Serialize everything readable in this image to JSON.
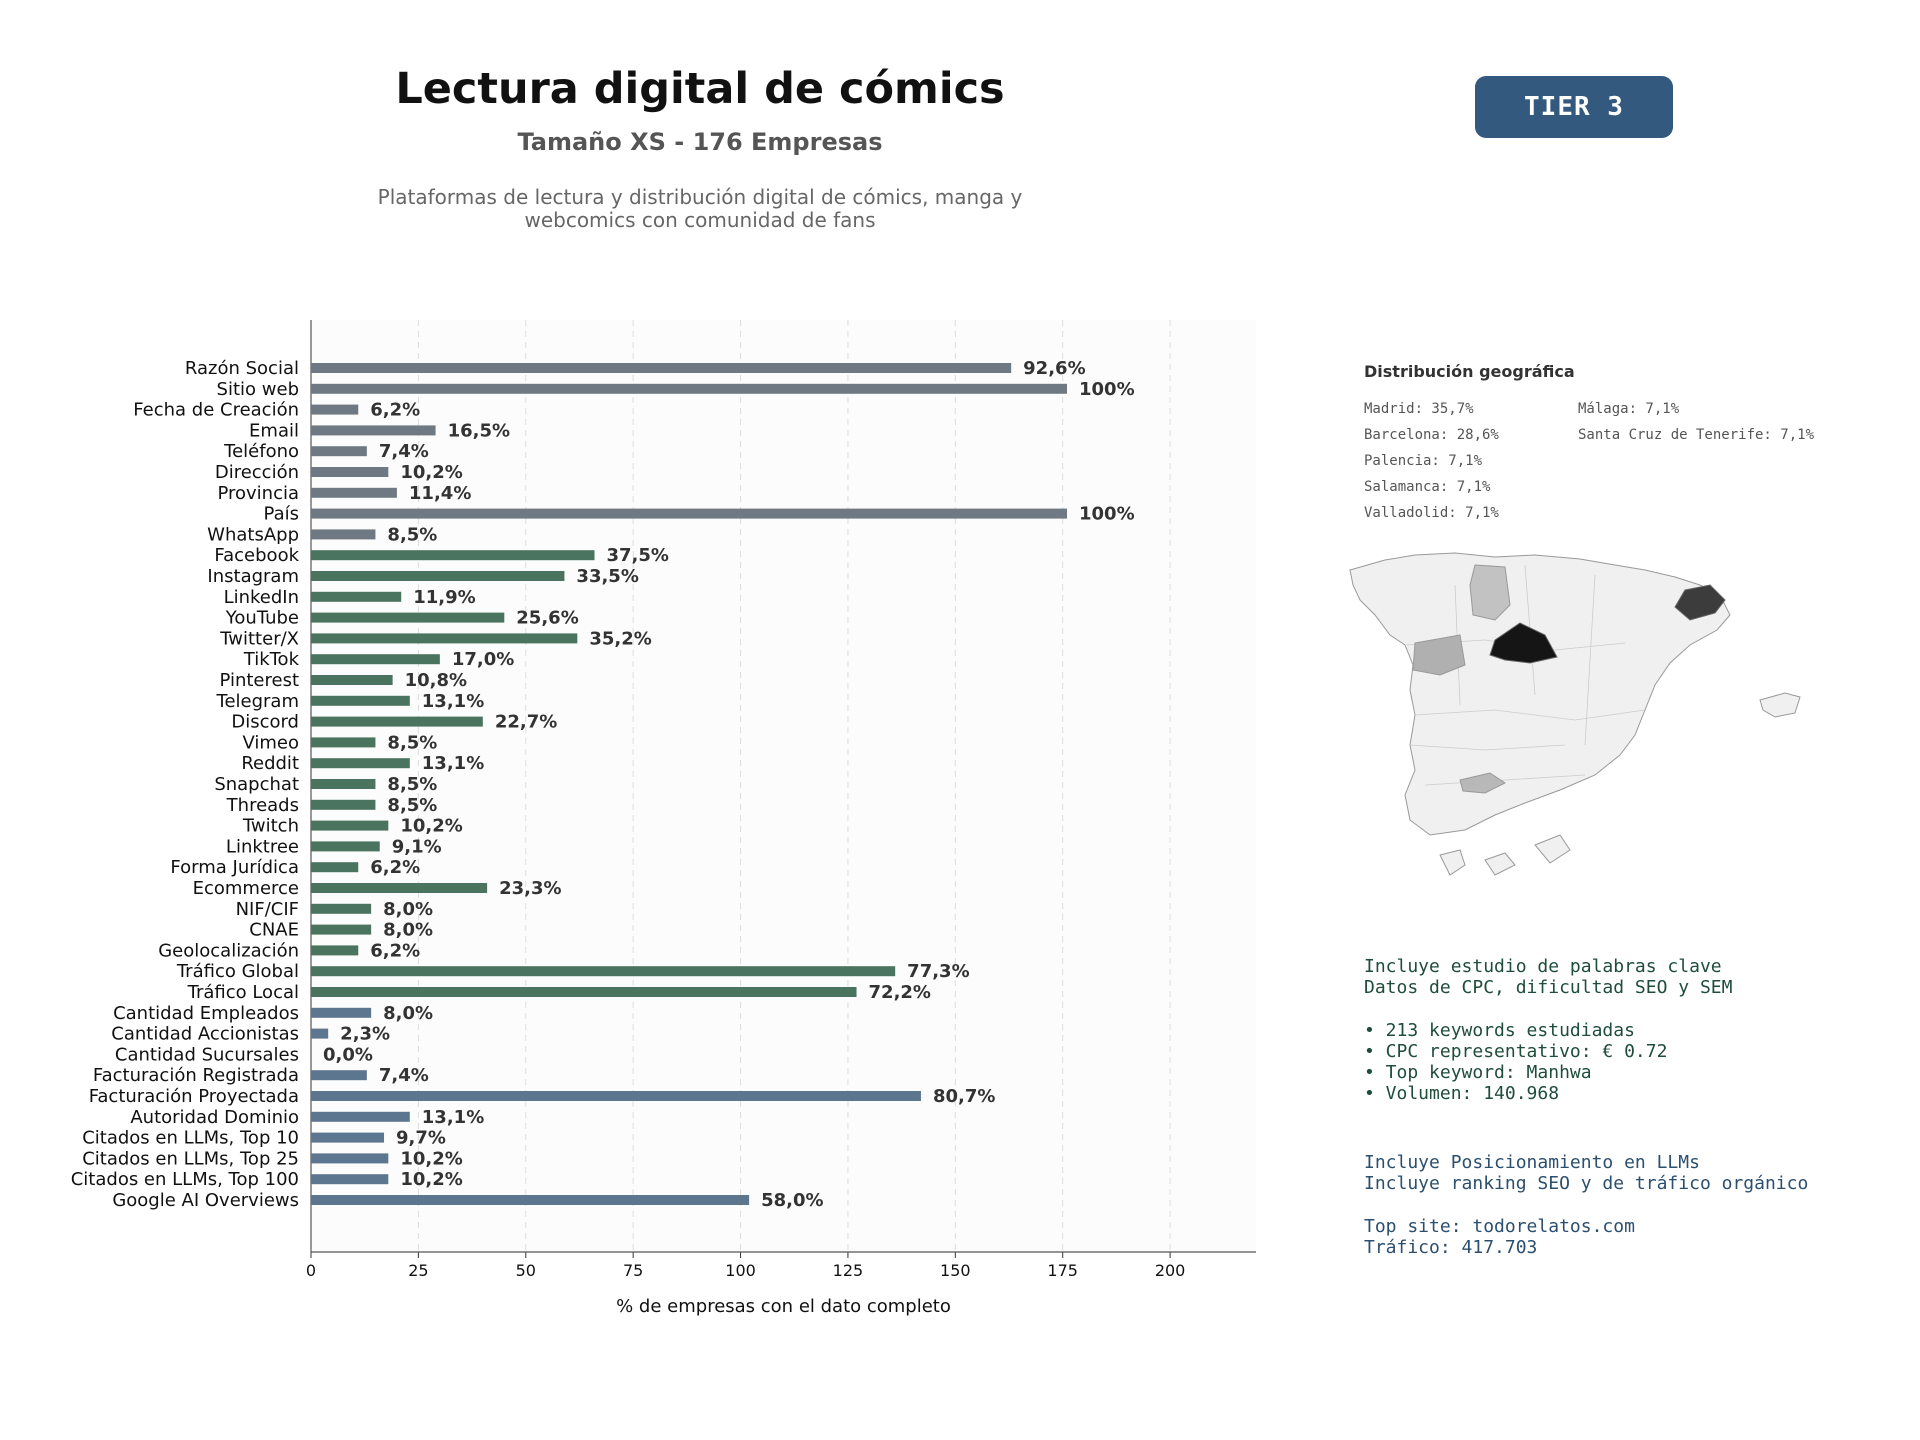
{
  "header": {
    "title": "Lectura digital de cómics",
    "subtitle": "Tamaño XS - 176 Empresas",
    "description_line1": "Plataformas de lectura y distribución digital de cómics, manga y",
    "description_line2": "webcomics con comunidad de fans",
    "tier": "TIER 3"
  },
  "colors": {
    "group_basic": "#6f7983",
    "group_social": "#4a7360",
    "group_business": "#5d7690",
    "tier_bg": "#335a7e",
    "plot_bg": "#fcfcfc"
  },
  "chart_data": {
    "type": "bar",
    "orientation": "horizontal",
    "xlabel": "% de empresas con el dato completo",
    "xlim": [
      0,
      220
    ],
    "xticks": [
      0,
      25,
      50,
      75,
      100,
      125,
      150,
      175,
      200
    ],
    "grid": "vertical dashed",
    "categories": [
      "Razón Social",
      "Sitio web",
      "Fecha de Creación",
      "Email",
      "Teléfono",
      "Dirección",
      "Provincia",
      "País",
      "WhatsApp",
      "Facebook",
      "Instagram",
      "LinkedIn",
      "YouTube",
      "Twitter/X",
      "TikTok",
      "Pinterest",
      "Telegram",
      "Discord",
      "Vimeo",
      "Reddit",
      "Snapchat",
      "Threads",
      "Twitch",
      "Linktree",
      "Forma Jurídica",
      "Ecommerce",
      "NIF/CIF",
      "CNAE",
      "Geolocalización",
      "Tráfico Global",
      "Tráfico Local",
      "Cantidad Empleados",
      "Cantidad Accionistas",
      "Cantidad Sucursales",
      "Facturación Registrada",
      "Facturación Proyectada",
      "Autoridad Dominio",
      "Citados en LLMs, Top 10",
      "Citados en LLMs, Top 25",
      "Citados en LLMs, Top 100",
      "Google AI Overviews"
    ],
    "values": [
      163,
      176,
      11,
      29,
      13,
      18,
      20,
      176,
      15,
      66,
      59,
      21,
      45,
      62,
      30,
      19,
      23,
      40,
      15,
      23,
      15,
      15,
      18,
      16,
      11,
      41,
      14,
      14,
      11,
      136,
      127,
      14,
      4,
      0,
      13,
      142,
      23,
      17,
      18,
      18,
      102
    ],
    "labels": [
      "92,6%",
      "100%",
      "6,2%",
      "16,5%",
      "7,4%",
      "10,2%",
      "11,4%",
      "100%",
      "8,5%",
      "37,5%",
      "33,5%",
      "11,9%",
      "25,6%",
      "35,2%",
      "17,0%",
      "10,8%",
      "13,1%",
      "22,7%",
      "8,5%",
      "13,1%",
      "8,5%",
      "8,5%",
      "10,2%",
      "9,1%",
      "6,2%",
      "23,3%",
      "8,0%",
      "8,0%",
      "6,2%",
      "77,3%",
      "72,2%",
      "8,0%",
      "2,3%",
      "0,0%",
      "7,4%",
      "80,7%",
      "13,1%",
      "9,7%",
      "10,2%",
      "10,2%",
      "58,0%"
    ],
    "groups": [
      "basic",
      "basic",
      "basic",
      "basic",
      "basic",
      "basic",
      "basic",
      "basic",
      "basic",
      "social",
      "social",
      "social",
      "social",
      "social",
      "social",
      "social",
      "social",
      "social",
      "social",
      "social",
      "social",
      "social",
      "social",
      "social",
      "social",
      "social",
      "social",
      "social",
      "social",
      "social",
      "social",
      "business",
      "business",
      "business",
      "business",
      "business",
      "business",
      "business",
      "business",
      "business",
      "business"
    ]
  },
  "geo": {
    "title": "Distribución geográfica",
    "col1": [
      "Madrid: 35,7%",
      "Barcelona: 28,6%",
      "Palencia: 7,1%",
      "Salamanca: 7,1%",
      "Valladolid: 7,1%"
    ],
    "col2": [
      "Málaga: 7,1%",
      "Santa Cruz de Tenerife: 7,1%"
    ]
  },
  "keywords": {
    "line1": "Incluye estudio de palabras clave",
    "line2": "Datos de CPC, dificultad SEO y SEM",
    "b1": "• 213 keywords estudiadas",
    "b2": "• CPC representativo: € 0.72",
    "b3": "• Top keyword: Manhwa",
    "b4": "• Volumen: 140.968"
  },
  "llm": {
    "line1": "Incluye Posicionamiento en LLMs",
    "line2": "Incluye ranking SEO y de tráfico orgánico",
    "line3": "Top site: todorelatos.com",
    "line4": "Tráfico: 417.703"
  }
}
